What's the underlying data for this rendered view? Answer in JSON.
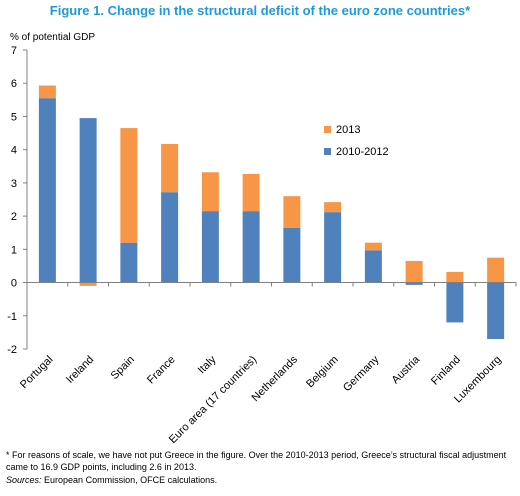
{
  "title": "Figure 1. Change in the structural deficit of the euro zone countries*",
  "note": "*  For reasons of scale, we have not put Greece in the figure. Over the 2010-2013 period, Greece’s structural fiscal adjustment came to 16.9 GDP points, including 2.6 in 2013.",
  "sources_label": "Sources:",
  "sources_text": " European Commission, OFCE calculations.",
  "colors": {
    "series_2010_2012": "#4f81bd",
    "series_2013": "#f79646"
  },
  "chart_data": {
    "type": "bar",
    "stacked": true,
    "ylabel": "% of potential GDP",
    "ylim": [
      -2,
      7
    ],
    "yticks": [
      -2,
      -1,
      0,
      1,
      2,
      3,
      4,
      5,
      6,
      7
    ],
    "grid": false,
    "legend_position": "right-center",
    "categories": [
      "Portugal",
      "Ireland",
      "Spain",
      "France",
      "Italy",
      "Euro area (17 countries)",
      "Netherlands",
      "Belgium",
      "Germany",
      "Austria",
      "Finland",
      "Luxembourg"
    ],
    "series": [
      {
        "name": "2010-2012",
        "color": "#4f81bd",
        "values": [
          5.55,
          4.95,
          1.2,
          2.72,
          2.15,
          2.15,
          1.65,
          2.12,
          0.97,
          -0.07,
          -1.2,
          -1.7
        ]
      },
      {
        "name": "2013",
        "color": "#f79646",
        "values": [
          0.38,
          -0.1,
          3.45,
          1.45,
          1.17,
          1.12,
          0.95,
          0.3,
          0.23,
          0.65,
          0.32,
          0.75
        ]
      }
    ]
  }
}
